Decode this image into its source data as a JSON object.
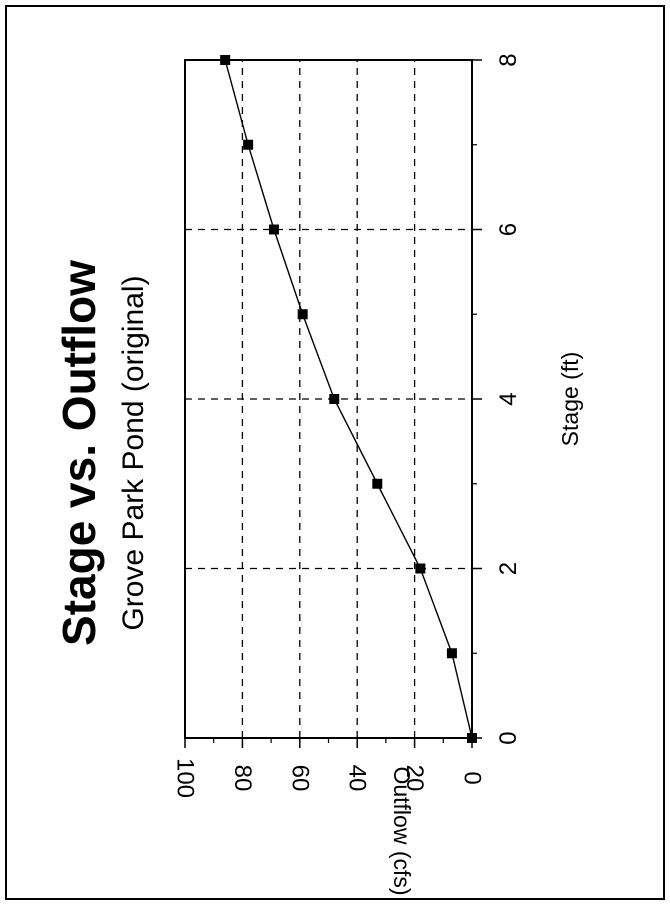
{
  "chart_data": {
    "type": "line",
    "title": "Stage vs. Outflow",
    "subtitle": "Grove Park Pond (original)",
    "xlabel": "Stage (ft)",
    "ylabel": "Outflow (cfs)",
    "xlim": [
      0,
      8
    ],
    "ylim": [
      0,
      100
    ],
    "x_ticks": [
      0,
      2,
      4,
      6,
      8
    ],
    "y_ticks": [
      0,
      20,
      40,
      60,
      80,
      100
    ],
    "x_minor_ticks": [
      1,
      3,
      5,
      7
    ],
    "y_minor_ticks": [
      10,
      30,
      50,
      70,
      90
    ],
    "grid": true,
    "marker": "square",
    "orientation": "rotated-90-ccw",
    "series": [
      {
        "x": [
          0,
          1,
          2,
          3,
          4,
          5,
          6,
          7,
          8
        ],
        "y": [
          0,
          7,
          18,
          33,
          48,
          59,
          69,
          78,
          86
        ]
      }
    ]
  }
}
